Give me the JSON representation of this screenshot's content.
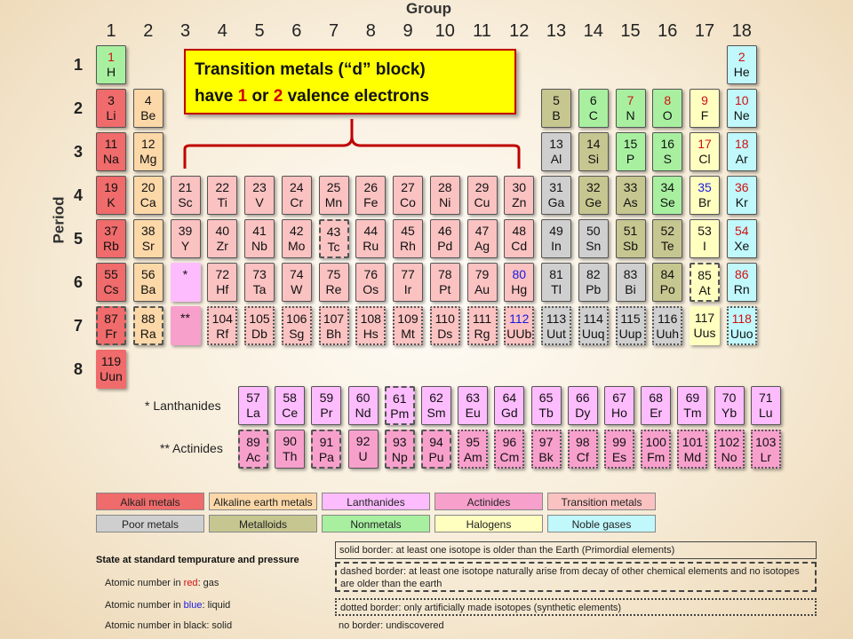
{
  "group_title": "Group",
  "period_title": "Period",
  "groups": [
    "1",
    "2",
    "3",
    "4",
    "5",
    "6",
    "7",
    "8",
    "9",
    "10",
    "11",
    "12",
    "13",
    "14",
    "15",
    "16",
    "17",
    "18"
  ],
  "periods": [
    "1",
    "2",
    "3",
    "4",
    "5",
    "6",
    "7",
    "8"
  ],
  "callout": {
    "line1": "Transition metals (“d” block)",
    "line2_pre": "have ",
    "n1": "1",
    "or": " or ",
    "n2": "2",
    "line2_post": " valence electrons"
  },
  "colors": {
    "alkali": "#f06b6b",
    "alkaline": "#fcd8a8",
    "lanthanide": "#fdbcfd",
    "actinide": "#f8a0cc",
    "transition": "#fbc2c2",
    "poor": "#cfcfcf",
    "metalloid": "#c6c690",
    "nonmetal": "#a8f0a0",
    "halogen": "#ffffc0",
    "noble": "#c0f8fc"
  },
  "elements": [
    {
      "n": "1",
      "s": "H",
      "c": "nonmetal",
      "g": 1,
      "p": 1,
      "col": "red",
      "b": "solid"
    },
    {
      "n": "2",
      "s": "He",
      "c": "noble",
      "g": 18,
      "p": 1,
      "col": "red",
      "b": "solid"
    },
    {
      "n": "3",
      "s": "Li",
      "c": "alkali",
      "g": 1,
      "p": 2,
      "col": "black",
      "b": "solid"
    },
    {
      "n": "4",
      "s": "Be",
      "c": "alkaline",
      "g": 2,
      "p": 2,
      "col": "black",
      "b": "solid"
    },
    {
      "n": "5",
      "s": "B",
      "c": "metalloid",
      "g": 13,
      "p": 2,
      "col": "black",
      "b": "solid"
    },
    {
      "n": "6",
      "s": "C",
      "c": "nonmetal",
      "g": 14,
      "p": 2,
      "col": "black",
      "b": "solid"
    },
    {
      "n": "7",
      "s": "N",
      "c": "nonmetal",
      "g": 15,
      "p": 2,
      "col": "red",
      "b": "solid"
    },
    {
      "n": "8",
      "s": "O",
      "c": "nonmetal",
      "g": 16,
      "p": 2,
      "col": "red",
      "b": "solid"
    },
    {
      "n": "9",
      "s": "F",
      "c": "halogen",
      "g": 17,
      "p": 2,
      "col": "red",
      "b": "solid"
    },
    {
      "n": "10",
      "s": "Ne",
      "c": "noble",
      "g": 18,
      "p": 2,
      "col": "red",
      "b": "solid"
    },
    {
      "n": "11",
      "s": "Na",
      "c": "alkali",
      "g": 1,
      "p": 3,
      "col": "black",
      "b": "solid"
    },
    {
      "n": "12",
      "s": "Mg",
      "c": "alkaline",
      "g": 2,
      "p": 3,
      "col": "black",
      "b": "solid"
    },
    {
      "n": "13",
      "s": "Al",
      "c": "poor",
      "g": 13,
      "p": 3,
      "col": "black",
      "b": "solid"
    },
    {
      "n": "14",
      "s": "Si",
      "c": "metalloid",
      "g": 14,
      "p": 3,
      "col": "black",
      "b": "solid"
    },
    {
      "n": "15",
      "s": "P",
      "c": "nonmetal",
      "g": 15,
      "p": 3,
      "col": "black",
      "b": "solid"
    },
    {
      "n": "16",
      "s": "S",
      "c": "nonmetal",
      "g": 16,
      "p": 3,
      "col": "black",
      "b": "solid"
    },
    {
      "n": "17",
      "s": "Cl",
      "c": "halogen",
      "g": 17,
      "p": 3,
      "col": "red",
      "b": "solid"
    },
    {
      "n": "18",
      "s": "Ar",
      "c": "noble",
      "g": 18,
      "p": 3,
      "col": "red",
      "b": "solid"
    },
    {
      "n": "19",
      "s": "K",
      "c": "alkali",
      "g": 1,
      "p": 4,
      "col": "black",
      "b": "solid"
    },
    {
      "n": "20",
      "s": "Ca",
      "c": "alkaline",
      "g": 2,
      "p": 4,
      "col": "black",
      "b": "solid"
    },
    {
      "n": "21",
      "s": "Sc",
      "c": "transition",
      "g": 3,
      "p": 4,
      "col": "black",
      "b": "solid"
    },
    {
      "n": "22",
      "s": "Ti",
      "c": "transition",
      "g": 4,
      "p": 4,
      "col": "black",
      "b": "solid"
    },
    {
      "n": "23",
      "s": "V",
      "c": "transition",
      "g": 5,
      "p": 4,
      "col": "black",
      "b": "solid"
    },
    {
      "n": "24",
      "s": "Cr",
      "c": "transition",
      "g": 6,
      "p": 4,
      "col": "black",
      "b": "solid"
    },
    {
      "n": "25",
      "s": "Mn",
      "c": "transition",
      "g": 7,
      "p": 4,
      "col": "black",
      "b": "solid"
    },
    {
      "n": "26",
      "s": "Fe",
      "c": "transition",
      "g": 8,
      "p": 4,
      "col": "black",
      "b": "solid"
    },
    {
      "n": "27",
      "s": "Co",
      "c": "transition",
      "g": 9,
      "p": 4,
      "col": "black",
      "b": "solid"
    },
    {
      "n": "28",
      "s": "Ni",
      "c": "transition",
      "g": 10,
      "p": 4,
      "col": "black",
      "b": "solid"
    },
    {
      "n": "29",
      "s": "Cu",
      "c": "transition",
      "g": 11,
      "p": 4,
      "col": "black",
      "b": "solid"
    },
    {
      "n": "30",
      "s": "Zn",
      "c": "transition",
      "g": 12,
      "p": 4,
      "col": "black",
      "b": "solid"
    },
    {
      "n": "31",
      "s": "Ga",
      "c": "poor",
      "g": 13,
      "p": 4,
      "col": "black",
      "b": "solid"
    },
    {
      "n": "32",
      "s": "Ge",
      "c": "metalloid",
      "g": 14,
      "p": 4,
      "col": "black",
      "b": "solid"
    },
    {
      "n": "33",
      "s": "As",
      "c": "metalloid",
      "g": 15,
      "p": 4,
      "col": "black",
      "b": "solid"
    },
    {
      "n": "34",
      "s": "Se",
      "c": "nonmetal",
      "g": 16,
      "p": 4,
      "col": "black",
      "b": "solid"
    },
    {
      "n": "35",
      "s": "Br",
      "c": "halogen",
      "g": 17,
      "p": 4,
      "col": "blue",
      "b": "solid"
    },
    {
      "n": "36",
      "s": "Kr",
      "c": "noble",
      "g": 18,
      "p": 4,
      "col": "red",
      "b": "solid"
    },
    {
      "n": "37",
      "s": "Rb",
      "c": "alkali",
      "g": 1,
      "p": 5,
      "col": "black",
      "b": "solid"
    },
    {
      "n": "38",
      "s": "Sr",
      "c": "alkaline",
      "g": 2,
      "p": 5,
      "col": "black",
      "b": "solid"
    },
    {
      "n": "39",
      "s": "Y",
      "c": "transition",
      "g": 3,
      "p": 5,
      "col": "black",
      "b": "solid"
    },
    {
      "n": "40",
      "s": "Zr",
      "c": "transition",
      "g": 4,
      "p": 5,
      "col": "black",
      "b": "solid"
    },
    {
      "n": "41",
      "s": "Nb",
      "c": "transition",
      "g": 5,
      "p": 5,
      "col": "black",
      "b": "solid"
    },
    {
      "n": "42",
      "s": "Mo",
      "c": "transition",
      "g": 6,
      "p": 5,
      "col": "black",
      "b": "solid"
    },
    {
      "n": "43",
      "s": "Tc",
      "c": "transition",
      "g": 7,
      "p": 5,
      "col": "black",
      "b": "dashed"
    },
    {
      "n": "44",
      "s": "Ru",
      "c": "transition",
      "g": 8,
      "p": 5,
      "col": "black",
      "b": "solid"
    },
    {
      "n": "45",
      "s": "Rh",
      "c": "transition",
      "g": 9,
      "p": 5,
      "col": "black",
      "b": "solid"
    },
    {
      "n": "46",
      "s": "Pd",
      "c": "transition",
      "g": 10,
      "p": 5,
      "col": "black",
      "b": "solid"
    },
    {
      "n": "47",
      "s": "Ag",
      "c": "transition",
      "g": 11,
      "p": 5,
      "col": "black",
      "b": "solid"
    },
    {
      "n": "48",
      "s": "Cd",
      "c": "transition",
      "g": 12,
      "p": 5,
      "col": "black",
      "b": "solid"
    },
    {
      "n": "49",
      "s": "In",
      "c": "poor",
      "g": 13,
      "p": 5,
      "col": "black",
      "b": "solid"
    },
    {
      "n": "50",
      "s": "Sn",
      "c": "poor",
      "g": 14,
      "p": 5,
      "col": "black",
      "b": "solid"
    },
    {
      "n": "51",
      "s": "Sb",
      "c": "metalloid",
      "g": 15,
      "p": 5,
      "col": "black",
      "b": "solid"
    },
    {
      "n": "52",
      "s": "Te",
      "c": "metalloid",
      "g": 16,
      "p": 5,
      "col": "black",
      "b": "solid"
    },
    {
      "n": "53",
      "s": "I",
      "c": "halogen",
      "g": 17,
      "p": 5,
      "col": "black",
      "b": "solid"
    },
    {
      "n": "54",
      "s": "Xe",
      "c": "noble",
      "g": 18,
      "p": 5,
      "col": "red",
      "b": "solid"
    },
    {
      "n": "55",
      "s": "Cs",
      "c": "alkali",
      "g": 1,
      "p": 6,
      "col": "black",
      "b": "solid"
    },
    {
      "n": "56",
      "s": "Ba",
      "c": "alkaline",
      "g": 2,
      "p": 6,
      "col": "black",
      "b": "solid"
    },
    {
      "n": "*",
      "s": "",
      "c": "lanthanide",
      "g": 3,
      "p": 6,
      "col": "black",
      "b": "none"
    },
    {
      "n": "72",
      "s": "Hf",
      "c": "transition",
      "g": 4,
      "p": 6,
      "col": "black",
      "b": "solid"
    },
    {
      "n": "73",
      "s": "Ta",
      "c": "transition",
      "g": 5,
      "p": 6,
      "col": "black",
      "b": "solid"
    },
    {
      "n": "74",
      "s": "W",
      "c": "transition",
      "g": 6,
      "p": 6,
      "col": "black",
      "b": "solid"
    },
    {
      "n": "75",
      "s": "Re",
      "c": "transition",
      "g": 7,
      "p": 6,
      "col": "black",
      "b": "solid"
    },
    {
      "n": "76",
      "s": "Os",
      "c": "transition",
      "g": 8,
      "p": 6,
      "col": "black",
      "b": "solid"
    },
    {
      "n": "77",
      "s": "Ir",
      "c": "transition",
      "g": 9,
      "p": 6,
      "col": "black",
      "b": "solid"
    },
    {
      "n": "78",
      "s": "Pt",
      "c": "transition",
      "g": 10,
      "p": 6,
      "col": "black",
      "b": "solid"
    },
    {
      "n": "79",
      "s": "Au",
      "c": "transition",
      "g": 11,
      "p": 6,
      "col": "black",
      "b": "solid"
    },
    {
      "n": "80",
      "s": "Hg",
      "c": "transition",
      "g": 12,
      "p": 6,
      "col": "blue",
      "b": "solid"
    },
    {
      "n": "81",
      "s": "Tl",
      "c": "poor",
      "g": 13,
      "p": 6,
      "col": "black",
      "b": "solid"
    },
    {
      "n": "82",
      "s": "Pb",
      "c": "poor",
      "g": 14,
      "p": 6,
      "col": "black",
      "b": "solid"
    },
    {
      "n": "83",
      "s": "Bi",
      "c": "poor",
      "g": 15,
      "p": 6,
      "col": "black",
      "b": "solid"
    },
    {
      "n": "84",
      "s": "Po",
      "c": "metalloid",
      "g": 16,
      "p": 6,
      "col": "black",
      "b": "solid"
    },
    {
      "n": "85",
      "s": "At",
      "c": "halogen",
      "g": 17,
      "p": 6,
      "col": "black",
      "b": "dashed"
    },
    {
      "n": "86",
      "s": "Rn",
      "c": "noble",
      "g": 18,
      "p": 6,
      "col": "red",
      "b": "solid"
    },
    {
      "n": "87",
      "s": "Fr",
      "c": "alkali",
      "g": 1,
      "p": 7,
      "col": "black",
      "b": "dashed"
    },
    {
      "n": "88",
      "s": "Ra",
      "c": "alkaline",
      "g": 2,
      "p": 7,
      "col": "black",
      "b": "dashed"
    },
    {
      "n": "**",
      "s": "",
      "c": "actinide",
      "g": 3,
      "p": 7,
      "col": "black",
      "b": "none"
    },
    {
      "n": "104",
      "s": "Rf",
      "c": "transition",
      "g": 4,
      "p": 7,
      "col": "black",
      "b": "dotted"
    },
    {
      "n": "105",
      "s": "Db",
      "c": "transition",
      "g": 5,
      "p": 7,
      "col": "black",
      "b": "dotted"
    },
    {
      "n": "106",
      "s": "Sg",
      "c": "transition",
      "g": 6,
      "p": 7,
      "col": "black",
      "b": "dotted"
    },
    {
      "n": "107",
      "s": "Bh",
      "c": "transition",
      "g": 7,
      "p": 7,
      "col": "black",
      "b": "dotted"
    },
    {
      "n": "108",
      "s": "Hs",
      "c": "transition",
      "g": 8,
      "p": 7,
      "col": "black",
      "b": "dotted"
    },
    {
      "n": "109",
      "s": "Mt",
      "c": "transition",
      "g": 9,
      "p": 7,
      "col": "black",
      "b": "dotted"
    },
    {
      "n": "110",
      "s": "Ds",
      "c": "transition",
      "g": 10,
      "p": 7,
      "col": "black",
      "b": "dotted"
    },
    {
      "n": "111",
      "s": "Rg",
      "c": "transition",
      "g": 11,
      "p": 7,
      "col": "black",
      "b": "dotted"
    },
    {
      "n": "112",
      "s": "UUb",
      "c": "transition",
      "g": 12,
      "p": 7,
      "col": "blue",
      "b": "dotted"
    },
    {
      "n": "113",
      "s": "Uut",
      "c": "poor",
      "g": 13,
      "p": 7,
      "col": "black",
      "b": "dotted"
    },
    {
      "n": "114",
      "s": "Uuq",
      "c": "poor",
      "g": 14,
      "p": 7,
      "col": "black",
      "b": "dotted"
    },
    {
      "n": "115",
      "s": "Uup",
      "c": "poor",
      "g": 15,
      "p": 7,
      "col": "black",
      "b": "dotted"
    },
    {
      "n": "116",
      "s": "Uuh",
      "c": "poor",
      "g": 16,
      "p": 7,
      "col": "black",
      "b": "dotted"
    },
    {
      "n": "117",
      "s": "Uus",
      "c": "halogen",
      "g": 17,
      "p": 7,
      "col": "black",
      "b": "none"
    },
    {
      "n": "118",
      "s": "Uuo",
      "c": "noble",
      "g": 18,
      "p": 7,
      "col": "red",
      "b": "dotted"
    },
    {
      "n": "119",
      "s": "Uun",
      "c": "alkali",
      "g": 1,
      "p": 8,
      "col": "black",
      "b": "none"
    }
  ],
  "lanthanide_label": "* Lanthanides",
  "actinide_label": "** Actinides",
  "lanthanides": [
    {
      "n": "57",
      "s": "La"
    },
    {
      "n": "58",
      "s": "Ce"
    },
    {
      "n": "59",
      "s": "Pr"
    },
    {
      "n": "60",
      "s": "Nd"
    },
    {
      "n": "61",
      "s": "Pm",
      "b": "dashed"
    },
    {
      "n": "62",
      "s": "Sm"
    },
    {
      "n": "63",
      "s": "Eu"
    },
    {
      "n": "64",
      "s": "Gd"
    },
    {
      "n": "65",
      "s": "Tb"
    },
    {
      "n": "66",
      "s": "Dy"
    },
    {
      "n": "67",
      "s": "Ho"
    },
    {
      "n": "68",
      "s": "Er"
    },
    {
      "n": "69",
      "s": "Tm"
    },
    {
      "n": "70",
      "s": "Yb"
    },
    {
      "n": "71",
      "s": "Lu"
    }
  ],
  "actinides": [
    {
      "n": "89",
      "s": "Ac",
      "b": "dashed"
    },
    {
      "n": "90",
      "s": "Th"
    },
    {
      "n": "91",
      "s": "Pa",
      "b": "dashed"
    },
    {
      "n": "92",
      "s": "U"
    },
    {
      "n": "93",
      "s": "Np",
      "b": "dashed"
    },
    {
      "n": "94",
      "s": "Pu",
      "b": "dashed"
    },
    {
      "n": "95",
      "s": "Am",
      "b": "dotted"
    },
    {
      "n": "96",
      "s": "Cm",
      "b": "dotted"
    },
    {
      "n": "97",
      "s": "Bk",
      "b": "dotted"
    },
    {
      "n": "98",
      "s": "Cf",
      "b": "dotted"
    },
    {
      "n": "99",
      "s": "Es",
      "b": "dotted"
    },
    {
      "n": "100",
      "s": "Fm",
      "b": "dotted"
    },
    {
      "n": "101",
      "s": "Md",
      "b": "dotted"
    },
    {
      "n": "102",
      "s": "No",
      "b": "dotted"
    },
    {
      "n": "103",
      "s": "Lr",
      "b": "dotted"
    }
  ],
  "legend": [
    {
      "label": "Alkali metals",
      "c": "alkali"
    },
    {
      "label": "Alkaline earth metals",
      "c": "alkaline"
    },
    {
      "label": "Lanthanides",
      "c": "lanthanide"
    },
    {
      "label": "Actinides",
      "c": "actinide"
    },
    {
      "label": "Transition metals",
      "c": "transition"
    },
    {
      "label": "Poor metals",
      "c": "poor"
    },
    {
      "label": "Metalloids",
      "c": "metalloid"
    },
    {
      "label": "Nonmetals",
      "c": "nonmetal"
    },
    {
      "label": "Halogens",
      "c": "halogen"
    },
    {
      "label": "Noble gases",
      "c": "noble"
    }
  ],
  "state": {
    "title": "State at standard tempurature and pressure",
    "gas_pre": "Atomic number in ",
    "gas_color": "red",
    "gas_post": ": gas",
    "liquid_pre": "Atomic number in ",
    "liquid_color": "blue",
    "liquid_post": ": liquid",
    "solid": "Atomic number in black: solid"
  },
  "borders": {
    "solid": "solid border: at least one isotope is older than the Earth (Primordial elements)",
    "dashed": "dashed border: at least one isotope naturally arise from decay of other chemical elements and no isotopes are older than the earth",
    "dotted": "dotted border: only artificially made isotopes (synthetic elements)",
    "none": "no border: undiscovered"
  }
}
